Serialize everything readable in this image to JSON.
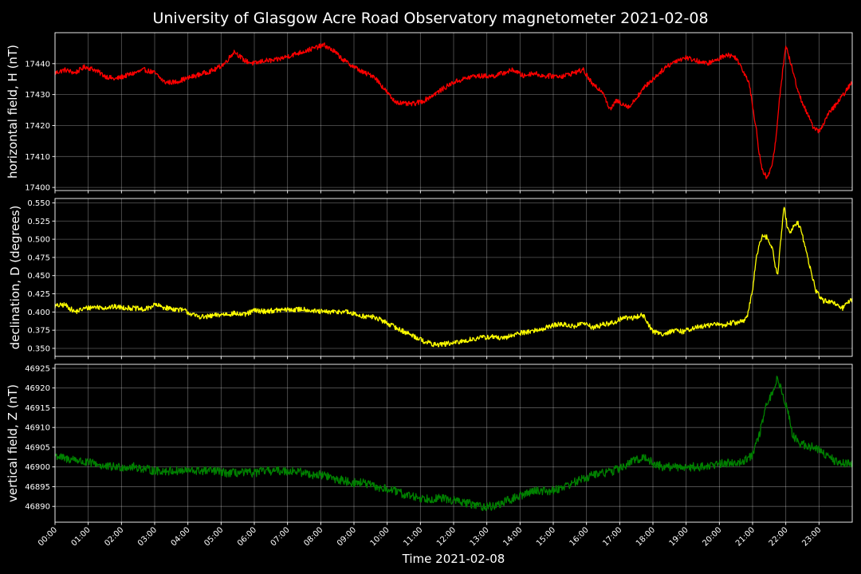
{
  "title": "University of Glasgow Acre Road Observatory magnetometer 2021-02-08",
  "chart_data": {
    "type": "line",
    "title": "University of Glasgow Acre Road Observatory magnetometer 2021-02-08",
    "xlabel": "Time 2021-02-08",
    "x_tick_labels": [
      "00:00",
      "01:00",
      "02:00",
      "03:00",
      "04:00",
      "05:00",
      "06:00",
      "07:00",
      "08:00",
      "09:00",
      "10:00",
      "11:00",
      "12:00",
      "13:00",
      "14:00",
      "15:00",
      "16:00",
      "17:00",
      "18:00",
      "19:00",
      "20:00",
      "21:00",
      "22:00",
      "23:00"
    ],
    "xlim_hours": [
      0,
      24
    ],
    "grid": true,
    "panels": [
      {
        "ylabel": "horizontal field, H (nT)",
        "color": "#ff0000",
        "ylim": [
          17399,
          17450
        ],
        "y_ticks": [
          17400,
          17410,
          17420,
          17430,
          17440
        ],
        "y_tick_labels": [
          "17400",
          "17410",
          "17420",
          "17430",
          "17440"
        ],
        "noise": 0.8,
        "x_hours": [
          0,
          0.3,
          0.6,
          0.9,
          1.2,
          1.5,
          1.8,
          2.1,
          2.4,
          2.7,
          3.0,
          3.3,
          3.6,
          3.9,
          4.2,
          4.5,
          4.8,
          5.1,
          5.4,
          5.7,
          6.0,
          6.3,
          6.6,
          6.9,
          7.2,
          7.5,
          7.8,
          8.1,
          8.4,
          8.7,
          9.0,
          9.3,
          9.6,
          9.9,
          10.2,
          10.5,
          10.8,
          11.1,
          11.4,
          11.7,
          12.0,
          12.3,
          12.6,
          12.9,
          13.2,
          13.5,
          13.8,
          14.1,
          14.4,
          14.7,
          15.0,
          15.3,
          15.6,
          15.9,
          16.2,
          16.5,
          16.7,
          16.9,
          17.1,
          17.3,
          17.5,
          17.8,
          18.1,
          18.4,
          18.7,
          19.0,
          19.3,
          19.6,
          19.9,
          20.2,
          20.5,
          20.7,
          20.9,
          21.0,
          21.1,
          21.2,
          21.3,
          21.45,
          21.6,
          21.7,
          21.8,
          21.9,
          22.0,
          22.2,
          22.4,
          22.6,
          22.8,
          23.0,
          23.3,
          23.6,
          24.0
        ],
        "values": [
          17437,
          17438,
          17437,
          17439,
          17438,
          17436,
          17435,
          17436,
          17437,
          17438,
          17437,
          17434,
          17434,
          17435,
          17436,
          17437,
          17438,
          17440,
          17444,
          17441,
          17440,
          17441,
          17441,
          17442,
          17443,
          17444,
          17445,
          17446,
          17444,
          17441,
          17439,
          17437,
          17436,
          17432,
          17428,
          17427,
          17427,
          17428,
          17430,
          17432,
          17434,
          17435,
          17436,
          17436,
          17436,
          17437,
          17438,
          17436,
          17437,
          17436,
          17436,
          17436,
          17437,
          17438,
          17433,
          17431,
          17425,
          17428,
          17427,
          17426,
          17429,
          17433,
          17436,
          17439,
          17441,
          17442,
          17441,
          17440,
          17441,
          17443,
          17442,
          17438,
          17434,
          17426,
          17420,
          17411,
          17405,
          17403,
          17408,
          17415,
          17428,
          17437,
          17446,
          17438,
          17430,
          17425,
          17420,
          17418,
          17424,
          17428,
          17434
        ]
      },
      {
        "ylabel": "declination, D (degrees)",
        "color": "#ffff00",
        "ylim": [
          0.339,
          0.556
        ],
        "y_ticks": [
          0.35,
          0.375,
          0.4,
          0.425,
          0.45,
          0.475,
          0.5,
          0.525,
          0.55
        ],
        "y_tick_labels": [
          "0.350",
          "0.375",
          "0.400",
          "0.425",
          "0.450",
          "0.475",
          "0.500",
          "0.525",
          "0.550"
        ],
        "noise": 0.0035,
        "x_hours": [
          0,
          0.3,
          0.6,
          0.9,
          1.2,
          1.5,
          1.8,
          2.1,
          2.4,
          2.7,
          3.0,
          3.3,
          3.6,
          3.9,
          4.2,
          4.5,
          4.8,
          5.1,
          5.4,
          5.7,
          6.0,
          6.3,
          6.6,
          6.9,
          7.2,
          7.5,
          7.8,
          8.1,
          8.4,
          8.7,
          9.0,
          9.3,
          9.6,
          9.9,
          10.2,
          10.5,
          10.8,
          11.1,
          11.4,
          11.7,
          12.0,
          12.3,
          12.6,
          12.9,
          13.2,
          13.5,
          13.8,
          14.1,
          14.4,
          14.7,
          15.0,
          15.3,
          15.6,
          15.9,
          16.2,
          16.5,
          16.8,
          17.1,
          17.4,
          17.7,
          18.0,
          18.3,
          18.6,
          18.9,
          19.2,
          19.5,
          19.8,
          20.1,
          20.4,
          20.7,
          20.85,
          21.0,
          21.1,
          21.2,
          21.3,
          21.45,
          21.6,
          21.75,
          21.85,
          21.95,
          22.05,
          22.15,
          22.25,
          22.35,
          22.45,
          22.6,
          22.75,
          22.9,
          23.1,
          23.3,
          23.5,
          23.7,
          24.0
        ],
        "values": [
          0.408,
          0.41,
          0.4,
          0.405,
          0.407,
          0.406,
          0.407,
          0.406,
          0.405,
          0.403,
          0.41,
          0.406,
          0.404,
          0.402,
          0.395,
          0.393,
          0.395,
          0.397,
          0.398,
          0.396,
          0.402,
          0.401,
          0.402,
          0.403,
          0.403,
          0.404,
          0.401,
          0.4,
          0.4,
          0.401,
          0.397,
          0.394,
          0.393,
          0.387,
          0.38,
          0.373,
          0.367,
          0.36,
          0.355,
          0.356,
          0.357,
          0.36,
          0.363,
          0.365,
          0.366,
          0.363,
          0.369,
          0.372,
          0.374,
          0.377,
          0.382,
          0.383,
          0.38,
          0.385,
          0.378,
          0.383,
          0.385,
          0.392,
          0.392,
          0.396,
          0.373,
          0.37,
          0.374,
          0.373,
          0.378,
          0.38,
          0.383,
          0.382,
          0.385,
          0.387,
          0.395,
          0.43,
          0.47,
          0.495,
          0.504,
          0.503,
          0.485,
          0.448,
          0.5,
          0.545,
          0.515,
          0.508,
          0.52,
          0.523,
          0.515,
          0.485,
          0.458,
          0.43,
          0.415,
          0.415,
          0.41,
          0.405,
          0.418
        ]
      },
      {
        "ylabel": "vertical field, Z (nT)",
        "color": "#008000",
        "ylim": [
          46886,
          46926
        ],
        "y_ticks": [
          46890,
          46895,
          46900,
          46905,
          46910,
          46915,
          46920,
          46925
        ],
        "y_tick_labels": [
          "46890",
          "46895",
          "46900",
          "46905",
          "46910",
          "46915",
          "46920",
          "46925"
        ],
        "noise": 1.1,
        "x_hours": [
          0,
          0.3,
          0.6,
          0.9,
          1.2,
          1.5,
          1.8,
          2.1,
          2.4,
          2.7,
          3.0,
          3.3,
          3.6,
          3.9,
          4.2,
          4.5,
          4.8,
          5.1,
          5.4,
          5.7,
          6.0,
          6.3,
          6.6,
          6.9,
          7.2,
          7.5,
          7.8,
          8.1,
          8.4,
          8.7,
          9.0,
          9.3,
          9.6,
          9.9,
          10.2,
          10.5,
          10.8,
          11.1,
          11.4,
          11.7,
          12.0,
          12.3,
          12.6,
          12.9,
          13.2,
          13.5,
          13.8,
          14.1,
          14.4,
          14.7,
          15.0,
          15.3,
          15.6,
          15.9,
          16.2,
          16.5,
          16.8,
          17.1,
          17.4,
          17.7,
          18.0,
          18.3,
          18.6,
          18.9,
          19.2,
          19.5,
          19.8,
          20.1,
          20.4,
          20.7,
          21.0,
          21.2,
          21.4,
          21.6,
          21.75,
          21.9,
          22.05,
          22.2,
          22.4,
          22.6,
          22.8,
          23.0,
          23.2,
          23.4,
          23.6,
          24.0
        ],
        "values": [
          46903,
          46902,
          46902,
          46901,
          46901,
          46900,
          46900,
          46900,
          46900,
          46899.5,
          46899,
          46899,
          46899,
          46899,
          46899,
          46899,
          46899,
          46898.5,
          46898.5,
          46898.5,
          46898.5,
          46899,
          46899,
          46899,
          46899,
          46898.5,
          46898,
          46898,
          46897,
          46896.5,
          46896,
          46896,
          46895,
          46894.5,
          46894,
          46893,
          46892.5,
          46892,
          46892,
          46892,
          46891.5,
          46891,
          46890.5,
          46890,
          46890,
          46891,
          46892,
          46893,
          46894,
          46894,
          46894,
          46895,
          46896,
          46897,
          46898,
          46898.5,
          46899,
          46900,
          46901.5,
          46902.5,
          46901,
          46900,
          46900,
          46900,
          46900,
          46900,
          46900.5,
          46901,
          46901,
          46901.5,
          46903,
          46908,
          46915,
          46919,
          46923,
          46918,
          46915,
          46908,
          46906,
          46905.5,
          46905,
          46904.5,
          46903,
          46902,
          46901,
          46901
        ]
      }
    ]
  }
}
